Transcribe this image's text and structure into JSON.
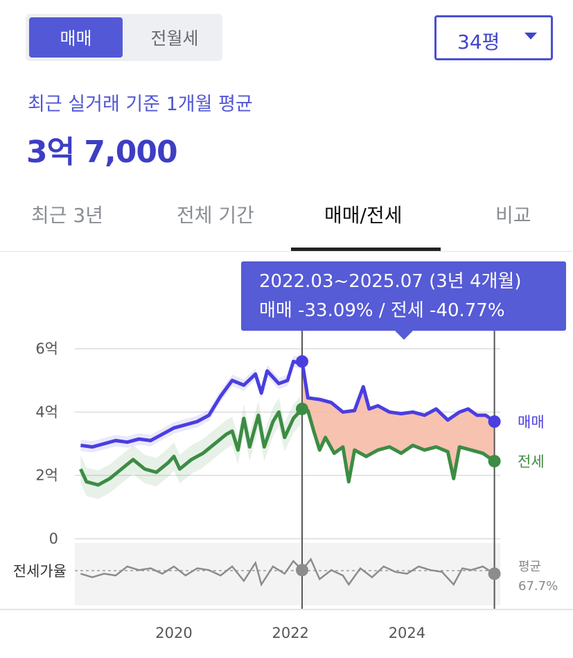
{
  "toggle": {
    "sale_label": "매매",
    "rent_label": "전월세"
  },
  "size_select": {
    "value": "34평"
  },
  "summary": {
    "subtitle": "최근 실거래 기준 1개월 평균",
    "price": "3억 7,000"
  },
  "tabs": [
    {
      "label": "최근 3년"
    },
    {
      "label": "전체 기간"
    },
    {
      "label": "매매/전세",
      "active": true
    },
    {
      "label": "비교"
    }
  ],
  "tooltip": {
    "period": "2022.03~2025.07 (3년 4개월)",
    "change": "매매 -33.09%  /  전세 -40.77%"
  },
  "colors": {
    "sale": "#4a3ee0",
    "jeonse": "#3c8c44",
    "fill_diff": "#f7b7a3",
    "accent": "#565bd6"
  },
  "chart_data": {
    "type": "line",
    "y_ticks": [
      {
        "value": 0,
        "label": "0"
      },
      {
        "value": 2,
        "label": "2억"
      },
      {
        "value": 4,
        "label": "4억"
      },
      {
        "value": 6,
        "label": "6억"
      }
    ],
    "ylim": [
      0,
      6
    ],
    "x_ticks": [
      {
        "value": 2020.0,
        "label": "2020"
      },
      {
        "value": 2022.0,
        "label": "2022"
      },
      {
        "value": 2024.0,
        "label": "2024"
      }
    ],
    "xlim": [
      2018.3,
      2025.6
    ],
    "grid": true,
    "highlight_range": [
      2022.2,
      2025.5
    ],
    "series": [
      {
        "name": "매매",
        "end_label": "매매",
        "points": [
          [
            2018.4,
            2.95
          ],
          [
            2018.6,
            2.9
          ],
          [
            2018.8,
            3.0
          ],
          [
            2019.0,
            3.1
          ],
          [
            2019.2,
            3.05
          ],
          [
            2019.4,
            3.15
          ],
          [
            2019.6,
            3.1
          ],
          [
            2019.8,
            3.3
          ],
          [
            2020.0,
            3.5
          ],
          [
            2020.2,
            3.6
          ],
          [
            2020.4,
            3.7
          ],
          [
            2020.6,
            3.9
          ],
          [
            2020.8,
            4.5
          ],
          [
            2021.0,
            5.0
          ],
          [
            2021.2,
            4.85
          ],
          [
            2021.4,
            5.2
          ],
          [
            2021.5,
            4.6
          ],
          [
            2021.6,
            5.3
          ],
          [
            2021.8,
            4.9
          ],
          [
            2021.95,
            5.0
          ],
          [
            2022.05,
            5.6
          ],
          [
            2022.15,
            5.55
          ],
          [
            2022.2,
            5.6
          ],
          [
            2022.3,
            4.45
          ],
          [
            2022.5,
            4.4
          ],
          [
            2022.7,
            4.3
          ],
          [
            2022.9,
            4.0
          ],
          [
            2023.1,
            4.05
          ],
          [
            2023.25,
            4.8
          ],
          [
            2023.35,
            4.1
          ],
          [
            2023.5,
            4.2
          ],
          [
            2023.7,
            4.0
          ],
          [
            2023.9,
            3.95
          ],
          [
            2024.1,
            4.0
          ],
          [
            2024.3,
            3.9
          ],
          [
            2024.5,
            4.1
          ],
          [
            2024.7,
            3.75
          ],
          [
            2024.9,
            4.0
          ],
          [
            2025.05,
            4.1
          ],
          [
            2025.2,
            3.9
          ],
          [
            2025.35,
            3.9
          ],
          [
            2025.5,
            3.7
          ]
        ]
      },
      {
        "name": "전세",
        "end_label": "전세",
        "points": [
          [
            2018.4,
            2.2
          ],
          [
            2018.5,
            1.8
          ],
          [
            2018.7,
            1.7
          ],
          [
            2018.9,
            1.9
          ],
          [
            2019.1,
            2.2
          ],
          [
            2019.3,
            2.5
          ],
          [
            2019.5,
            2.2
          ],
          [
            2019.7,
            2.1
          ],
          [
            2019.9,
            2.4
          ],
          [
            2020.0,
            2.6
          ],
          [
            2020.1,
            2.2
          ],
          [
            2020.3,
            2.5
          ],
          [
            2020.5,
            2.7
          ],
          [
            2020.7,
            3.0
          ],
          [
            2020.9,
            3.3
          ],
          [
            2021.0,
            3.4
          ],
          [
            2021.1,
            2.8
          ],
          [
            2021.2,
            3.8
          ],
          [
            2021.3,
            2.9
          ],
          [
            2021.45,
            3.9
          ],
          [
            2021.55,
            2.9
          ],
          [
            2021.7,
            3.7
          ],
          [
            2021.8,
            4.0
          ],
          [
            2021.9,
            3.2
          ],
          [
            2022.05,
            3.8
          ],
          [
            2022.2,
            4.1
          ],
          [
            2022.3,
            4.05
          ],
          [
            2022.4,
            3.4
          ],
          [
            2022.5,
            2.8
          ],
          [
            2022.6,
            3.2
          ],
          [
            2022.75,
            2.7
          ],
          [
            2022.9,
            2.9
          ],
          [
            2023.0,
            1.8
          ],
          [
            2023.1,
            2.8
          ],
          [
            2023.3,
            2.6
          ],
          [
            2023.5,
            2.8
          ],
          [
            2023.7,
            2.9
          ],
          [
            2023.9,
            2.7
          ],
          [
            2024.1,
            2.95
          ],
          [
            2024.3,
            2.8
          ],
          [
            2024.5,
            2.9
          ],
          [
            2024.7,
            2.75
          ],
          [
            2024.8,
            1.9
          ],
          [
            2024.9,
            2.9
          ],
          [
            2025.1,
            2.8
          ],
          [
            2025.3,
            2.7
          ],
          [
            2025.5,
            2.45
          ]
        ]
      }
    ],
    "ratio_series": {
      "name": "전세가율",
      "label": "전세가율",
      "avg_label": "평균",
      "avg_value_label": "67.7%",
      "average": 67.7,
      "points": [
        [
          2018.4,
          66
        ],
        [
          2018.6,
          64
        ],
        [
          2018.8,
          66
        ],
        [
          2019.0,
          65
        ],
        [
          2019.2,
          70
        ],
        [
          2019.4,
          68
        ],
        [
          2019.6,
          69
        ],
        [
          2019.8,
          66
        ],
        [
          2020.0,
          70
        ],
        [
          2020.2,
          65
        ],
        [
          2020.4,
          69
        ],
        [
          2020.6,
          68
        ],
        [
          2020.8,
          65
        ],
        [
          2021.0,
          70
        ],
        [
          2021.2,
          62
        ],
        [
          2021.4,
          72
        ],
        [
          2021.5,
          60
        ],
        [
          2021.7,
          70
        ],
        [
          2021.9,
          66
        ],
        [
          2022.05,
          73
        ],
        [
          2022.2,
          68
        ],
        [
          2022.35,
          74
        ],
        [
          2022.5,
          63
        ],
        [
          2022.7,
          68
        ],
        [
          2022.9,
          65
        ],
        [
          2023.0,
          60
        ],
        [
          2023.2,
          69
        ],
        [
          2023.4,
          64
        ],
        [
          2023.6,
          70
        ],
        [
          2023.8,
          67
        ],
        [
          2024.0,
          66
        ],
        [
          2024.2,
          70
        ],
        [
          2024.4,
          68
        ],
        [
          2024.6,
          67
        ],
        [
          2024.8,
          60
        ],
        [
          2024.95,
          69
        ],
        [
          2025.1,
          68
        ],
        [
          2025.3,
          70
        ],
        [
          2025.5,
          66
        ]
      ]
    }
  }
}
